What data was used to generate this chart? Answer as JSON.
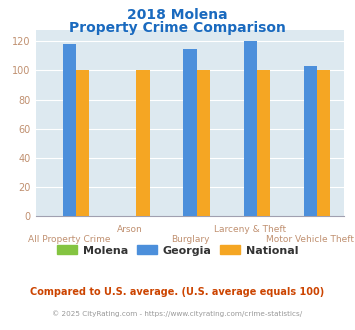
{
  "title_line1": "2018 Molena",
  "title_line2": "Property Crime Comparison",
  "xlabel_row1": [
    "",
    "Arson",
    "",
    "Larceny & Theft",
    ""
  ],
  "xlabel_row2": [
    "All Property Crime",
    "",
    "Burglary",
    "",
    "Motor Vehicle Theft"
  ],
  "molena_values": [
    0,
    0,
    0,
    0,
    0
  ],
  "georgia_values": [
    118,
    0,
    115,
    120,
    103
  ],
  "national_values": [
    100,
    100,
    100,
    100,
    100
  ],
  "molena_color": "#84c441",
  "georgia_color": "#4c8fdb",
  "national_color": "#f5a623",
  "ylim": [
    0,
    128
  ],
  "yticks": [
    0,
    20,
    40,
    60,
    80,
    100,
    120
  ],
  "plot_bg_color": "#dde9f0",
  "grid_color": "#ffffff",
  "title_color": "#1a6abf",
  "axis_tick_color": "#c09070",
  "legend_labels": [
    "Molena",
    "Georgia",
    "National"
  ],
  "footnote1": "Compared to U.S. average. (U.S. average equals 100)",
  "footnote2": "© 2025 CityRating.com - https://www.cityrating.com/crime-statistics/",
  "footnote1_color": "#cc4400",
  "footnote2_color": "#999999",
  "bar_width": 0.22
}
